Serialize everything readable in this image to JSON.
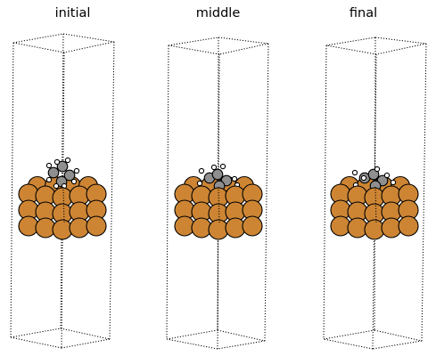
{
  "panels": [
    {
      "title": "initial"
    },
    {
      "title": "middle"
    },
    {
      "title": "final"
    }
  ],
  "colors": {
    "copper": "#CD8534",
    "carbon": "#8F8F8F",
    "hydrogen": "#FFFFFF",
    "outline": "#000000",
    "cell_edge": "#000000"
  }
}
